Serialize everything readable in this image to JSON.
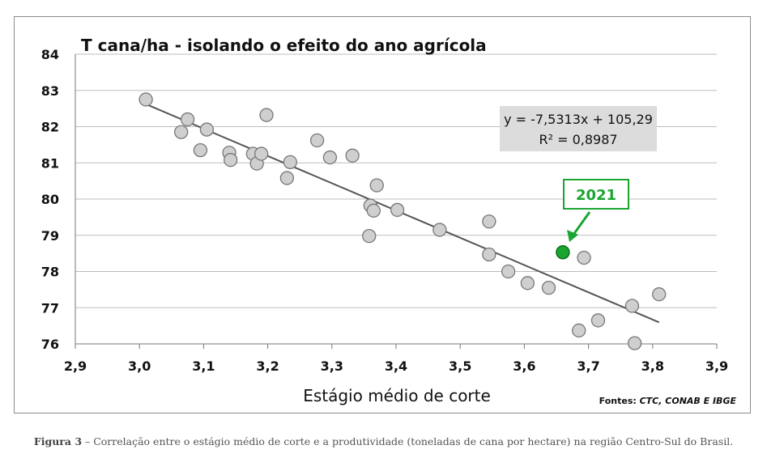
{
  "caption": {
    "label": "Figura 3",
    "text": " – Correlação entre o estágio médio de corte e a produtividade (toneladas de cana por hectare) na região Centro-Sul do Brasil."
  },
  "chart_data": {
    "type": "scatter",
    "title": "T cana/ha - isolando o efeito do ano agrícola",
    "xlabel": "Estágio médio de corte",
    "ylabel": "",
    "xlim": [
      2.9,
      3.9
    ],
    "ylim": [
      76,
      84
    ],
    "x_ticks": [
      "2,9",
      "3,0",
      "3,1",
      "3,2",
      "3,3",
      "3,4",
      "3,5",
      "3,6",
      "3,7",
      "3,8",
      "3,9"
    ],
    "y_ticks": [
      "76",
      "77",
      "78",
      "79",
      "80",
      "81",
      "82",
      "83",
      "84"
    ],
    "grid": "horizontal",
    "points": [
      [
        3.01,
        82.75
      ],
      [
        3.065,
        81.85
      ],
      [
        3.075,
        82.2
      ],
      [
        3.095,
        81.35
      ],
      [
        3.105,
        81.92
      ],
      [
        3.14,
        81.28
      ],
      [
        3.142,
        81.08
      ],
      [
        3.177,
        81.25
      ],
      [
        3.183,
        80.98
      ],
      [
        3.19,
        81.25
      ],
      [
        3.198,
        82.32
      ],
      [
        3.23,
        80.58
      ],
      [
        3.235,
        81.02
      ],
      [
        3.277,
        81.62
      ],
      [
        3.297,
        81.15
      ],
      [
        3.332,
        81.2
      ],
      [
        3.358,
        78.98
      ],
      [
        3.36,
        79.82
      ],
      [
        3.365,
        79.68
      ],
      [
        3.37,
        80.38
      ],
      [
        3.402,
        79.7
      ],
      [
        3.468,
        79.15
      ],
      [
        3.545,
        79.38
      ],
      [
        3.545,
        78.47
      ],
      [
        3.575,
        78.0
      ],
      [
        3.605,
        77.68
      ],
      [
        3.638,
        77.55
      ],
      [
        3.685,
        76.37
      ],
      [
        3.693,
        78.38
      ],
      [
        3.715,
        76.65
      ],
      [
        3.768,
        77.05
      ],
      [
        3.772,
        76.02
      ],
      [
        3.81,
        77.37
      ]
    ],
    "highlight": {
      "label": "2021",
      "x": 3.66,
      "y": 78.53,
      "color": "#1aa531"
    },
    "trendline": {
      "slope": -7.5313,
      "intercept": 105.29,
      "x_range": [
        3.01,
        3.81
      ],
      "equation": "y = -7,5313x + 105,29",
      "r2": "R² = 0,8987"
    },
    "source": {
      "prefix": "Fontes: ",
      "value": "CTC, CONAB E IBGE"
    },
    "colors": {
      "point_fill": "#cfcfcf",
      "point_stroke": "#777777",
      "grid": "#bdbdbd",
      "trendline": "#555555",
      "equation_box": "#dcdcdc"
    }
  }
}
